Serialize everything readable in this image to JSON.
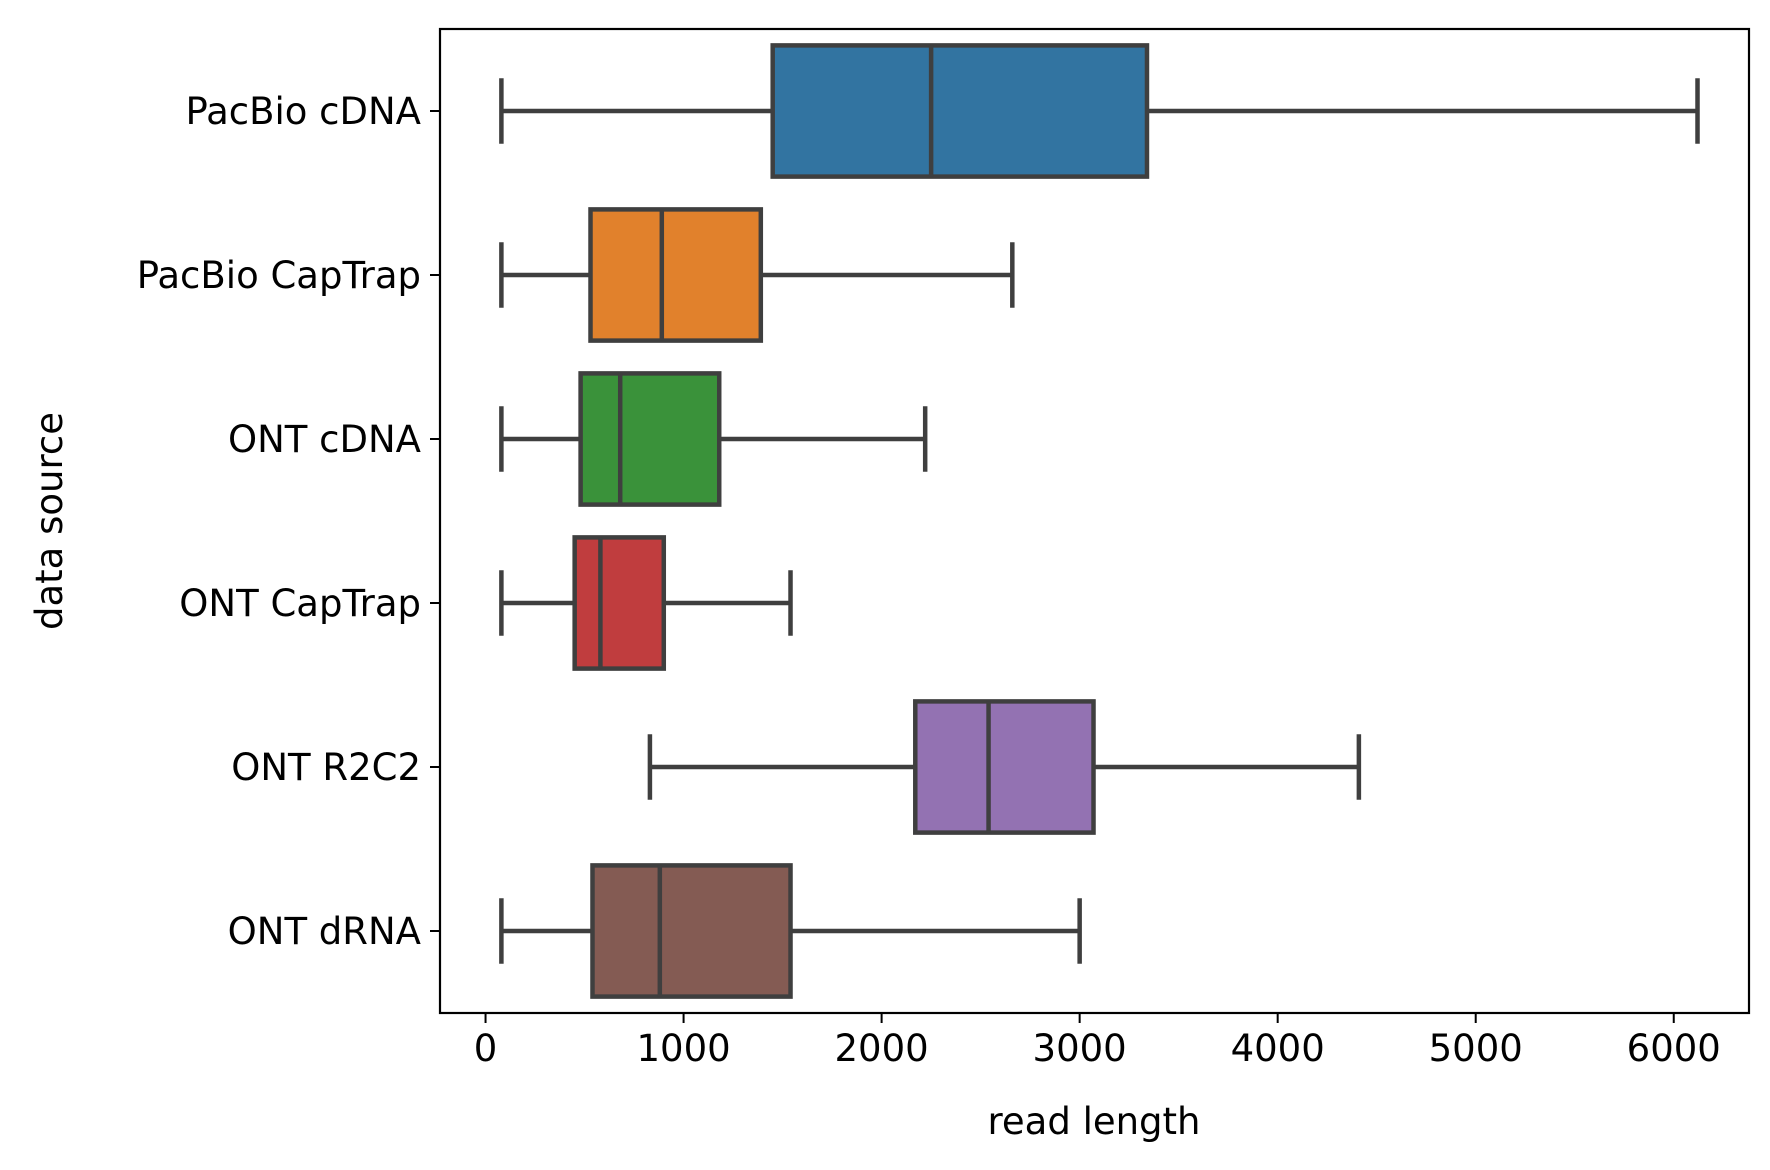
{
  "chart_data": {
    "type": "boxplot",
    "orientation": "horizontal",
    "title": "",
    "xlabel": "read length",
    "ylabel": "data source",
    "xlim": [
      -230,
      6380
    ],
    "xticks": [
      0,
      1000,
      2000,
      3000,
      4000,
      5000,
      6000
    ],
    "xtick_labels": [
      "0",
      "1000",
      "2000",
      "3000",
      "4000",
      "5000",
      "6000"
    ],
    "grid": false,
    "legend": "none",
    "categories": [
      "PacBio cDNA",
      "PacBio CapTrap",
      "ONT cDNA",
      "ONT CapTrap",
      "ONT R2C2",
      "ONT dRNA"
    ],
    "boxes": [
      {
        "category": "PacBio cDNA",
        "whisker_low": 80,
        "q1": 1450,
        "median": 2250,
        "q3": 3340,
        "whisker_high": 6120,
        "color": "#3274a1"
      },
      {
        "category": "PacBio CapTrap",
        "whisker_low": 80,
        "q1": 530,
        "median": 890,
        "q3": 1390,
        "whisker_high": 2660,
        "color": "#e1812c"
      },
      {
        "category": "ONT cDNA",
        "whisker_low": 80,
        "q1": 480,
        "median": 680,
        "q3": 1180,
        "whisker_high": 2220,
        "color": "#3a923a"
      },
      {
        "category": "ONT CapTrap",
        "whisker_low": 80,
        "q1": 450,
        "median": 580,
        "q3": 900,
        "whisker_high": 1540,
        "color": "#c03d3e"
      },
      {
        "category": "ONT R2C2",
        "whisker_low": 830,
        "q1": 2170,
        "median": 2540,
        "q3": 3070,
        "whisker_high": 4410,
        "color": "#9372b2"
      },
      {
        "category": "ONT dRNA",
        "whisker_low": 80,
        "q1": 540,
        "median": 880,
        "q3": 1540,
        "whisker_high": 3000,
        "color": "#845b53"
      }
    ],
    "line_color": "#3f3f3f"
  }
}
